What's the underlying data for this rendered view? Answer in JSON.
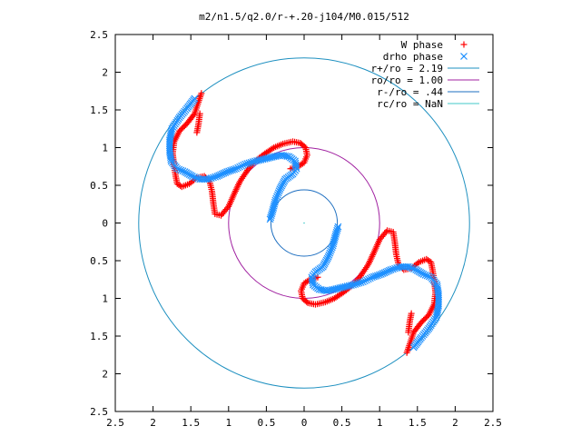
{
  "chart_data": {
    "type": "scatter",
    "title": "m2/n1.5/q2.0/r-+.20-j104/M0.015/512",
    "xlim": [
      -2.5,
      2.5
    ],
    "ylim": [
      -2.5,
      2.5
    ],
    "x_ticks": [
      -2.5,
      -2,
      -1.5,
      -1,
      -0.5,
      0,
      0.5,
      1,
      1.5,
      2,
      2.5
    ],
    "y_ticks": [
      -2.5,
      -2,
      -1.5,
      -1,
      -0.5,
      0,
      0.5,
      1,
      1.5,
      2,
      2.5
    ],
    "x_tick_labels": [
      "2.5",
      "2",
      "1.5",
      "1",
      "0.5",
      "0",
      "0.5",
      "1",
      "1.5",
      "2",
      "2.5"
    ],
    "y_tick_labels": [
      "2.5",
      "2",
      "1.5",
      "1",
      "0.5",
      "0",
      "0.5",
      "1",
      "1.5",
      "2",
      "2.5"
    ],
    "grid": false,
    "legend_position": "top-right",
    "series": [
      {
        "name": "W phase",
        "marker": "plus",
        "color": "#ff0000",
        "points": [
          [
            -1.36,
            1.72
          ],
          [
            -1.4,
            1.6
          ],
          [
            -1.45,
            1.45
          ],
          [
            -1.55,
            1.32
          ],
          [
            -1.65,
            1.22
          ],
          [
            -1.72,
            1.08
          ],
          [
            -1.74,
            0.92
          ],
          [
            -1.72,
            0.75
          ],
          [
            -1.7,
            0.62
          ],
          [
            -1.68,
            0.52
          ],
          [
            -1.62,
            0.48
          ],
          [
            -1.52,
            0.52
          ],
          [
            -1.42,
            0.6
          ],
          [
            -1.32,
            0.62
          ],
          [
            -1.25,
            0.55
          ],
          [
            -1.22,
            0.42
          ],
          [
            -1.2,
            0.25
          ],
          [
            -1.18,
            0.12
          ],
          [
            -1.1,
            0.1
          ],
          [
            -1.0,
            0.22
          ],
          [
            -0.92,
            0.4
          ],
          [
            -0.85,
            0.55
          ],
          [
            -0.75,
            0.7
          ],
          [
            -0.65,
            0.82
          ],
          [
            -0.52,
            0.92
          ],
          [
            -0.4,
            1.0
          ],
          [
            -0.28,
            1.05
          ],
          [
            -0.15,
            1.08
          ],
          [
            -0.05,
            1.06
          ],
          [
            0.02,
            1.0
          ],
          [
            0.04,
            0.9
          ],
          [
            0.0,
            0.8
          ],
          [
            -0.08,
            0.75
          ],
          [
            -0.18,
            0.72
          ],
          [
            -1.42,
            1.2
          ],
          [
            -1.4,
            1.3
          ],
          [
            -1.38,
            1.45
          ]
        ]
      },
      {
        "name": "drho phase",
        "marker": "x",
        "color": "#1e90ff",
        "points": [
          [
            -1.45,
            1.65
          ],
          [
            -1.55,
            1.52
          ],
          [
            -1.65,
            1.4
          ],
          [
            -1.75,
            1.25
          ],
          [
            -1.78,
            1.1
          ],
          [
            -1.78,
            0.95
          ],
          [
            -1.76,
            0.82
          ],
          [
            -1.68,
            0.72
          ],
          [
            -1.58,
            0.68
          ],
          [
            -1.48,
            0.62
          ],
          [
            -1.38,
            0.58
          ],
          [
            -1.28,
            0.58
          ],
          [
            -1.15,
            0.62
          ],
          [
            -1.02,
            0.68
          ],
          [
            -0.9,
            0.72
          ],
          [
            -0.78,
            0.78
          ],
          [
            -0.65,
            0.82
          ],
          [
            -0.52,
            0.85
          ],
          [
            -0.4,
            0.88
          ],
          [
            -0.3,
            0.9
          ],
          [
            -0.2,
            0.88
          ],
          [
            -0.12,
            0.82
          ],
          [
            -0.1,
            0.72
          ],
          [
            -0.15,
            0.65
          ],
          [
            -0.25,
            0.58
          ],
          [
            -0.32,
            0.45
          ],
          [
            -0.38,
            0.3
          ],
          [
            -0.42,
            0.15
          ],
          [
            -0.45,
            0.05
          ]
        ]
      }
    ],
    "circles": [
      {
        "label": "r+/ro = 2.19",
        "radius": 2.19,
        "color": "#1e90c0"
      },
      {
        "label": "ro/ro = 1.00",
        "radius": 1.0,
        "color": "#a020a0"
      },
      {
        "label": "r-/ro = .44",
        "radius": 0.44,
        "color": "#1e6fc0"
      },
      {
        "label": "rc/ro = NaN",
        "radius": null,
        "color": "#40c8c8"
      }
    ],
    "symmetry": "two-fold rotational (each phase curve repeated rotated by 180 degrees)"
  }
}
